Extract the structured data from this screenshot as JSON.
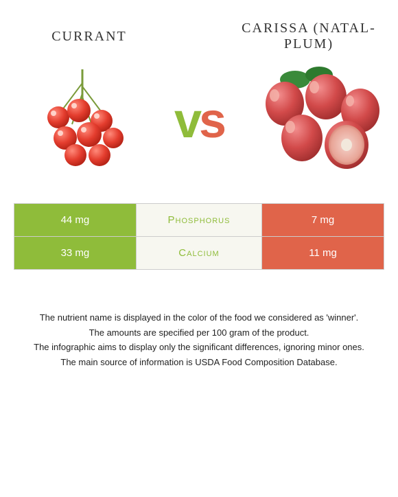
{
  "food_left": {
    "title": "Currant",
    "color": "#8fbc3a"
  },
  "food_right": {
    "title": "Carissa (natal-plum)",
    "color": "#e0644a"
  },
  "vs_label": "vs",
  "nutrients": [
    {
      "name": "Phosphorus",
      "left_value": "44 mg",
      "right_value": "7 mg",
      "winner": "left"
    },
    {
      "name": "Calcium",
      "left_value": "33 mg",
      "right_value": "11 mg",
      "winner": "left"
    }
  ],
  "footer": {
    "line1": "The nutrient name is displayed in the color of the food we considered as 'winner'.",
    "line2": "The amounts are specified per 100 gram of the product.",
    "line3": "The infographic aims to display only the significant differences, ignoring minor ones.",
    "line4": "The main source of information is USDA Food Composition Database."
  }
}
